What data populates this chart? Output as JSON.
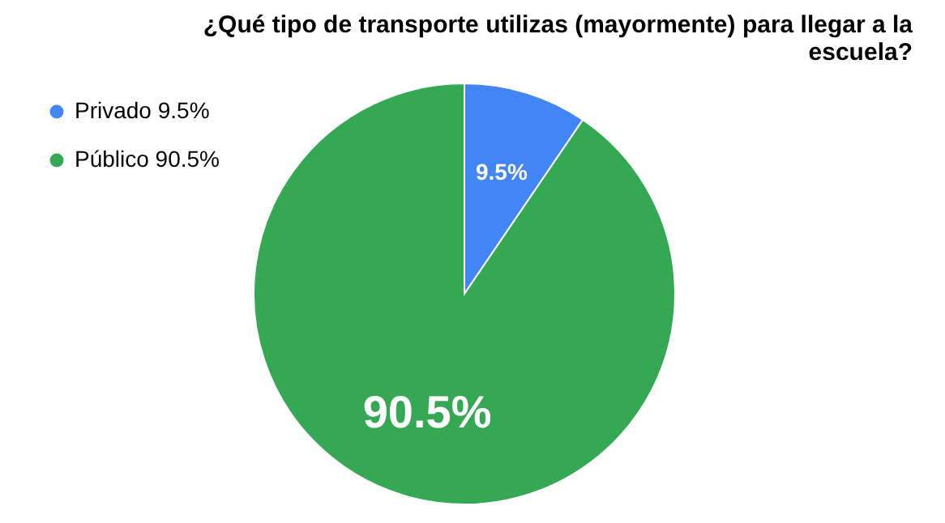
{
  "chart_data": {
    "type": "pie",
    "title": "¿Qué tipo de transporte utilizas (mayormente) para llegar a la escuela?",
    "categories": [
      "Privado",
      "Público"
    ],
    "values": [
      9.5,
      90.5
    ],
    "value_labels": [
      "9.5%",
      "90.5%"
    ],
    "colors": [
      "#4285f4",
      "#34a853"
    ],
    "legend": "top left"
  }
}
